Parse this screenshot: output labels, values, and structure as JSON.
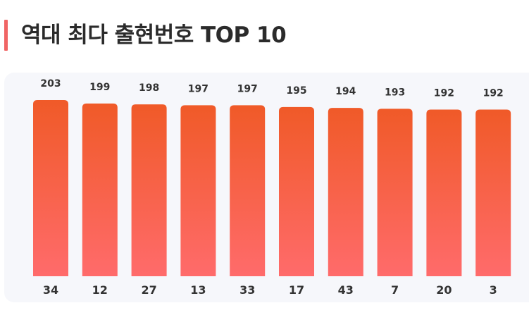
{
  "title": "역대 최다 출현번호 TOP 10",
  "colors": {
    "accent": "#f06565",
    "bar_top": "#f05a28",
    "bar_bottom": "#ff6b6b",
    "panel": "#f6f7fb",
    "text": "#2b2b2b"
  },
  "chart_data": {
    "type": "bar",
    "categories": [
      "34",
      "12",
      "27",
      "13",
      "33",
      "17",
      "43",
      "7",
      "20",
      "3"
    ],
    "values": [
      203,
      199,
      198,
      197,
      197,
      195,
      194,
      193,
      192,
      192
    ],
    "title": "역대 최다 출현번호 TOP 10",
    "xlabel": "",
    "ylabel": "",
    "ylim": [
      0,
      203
    ],
    "grid": false,
    "legend": "none"
  }
}
